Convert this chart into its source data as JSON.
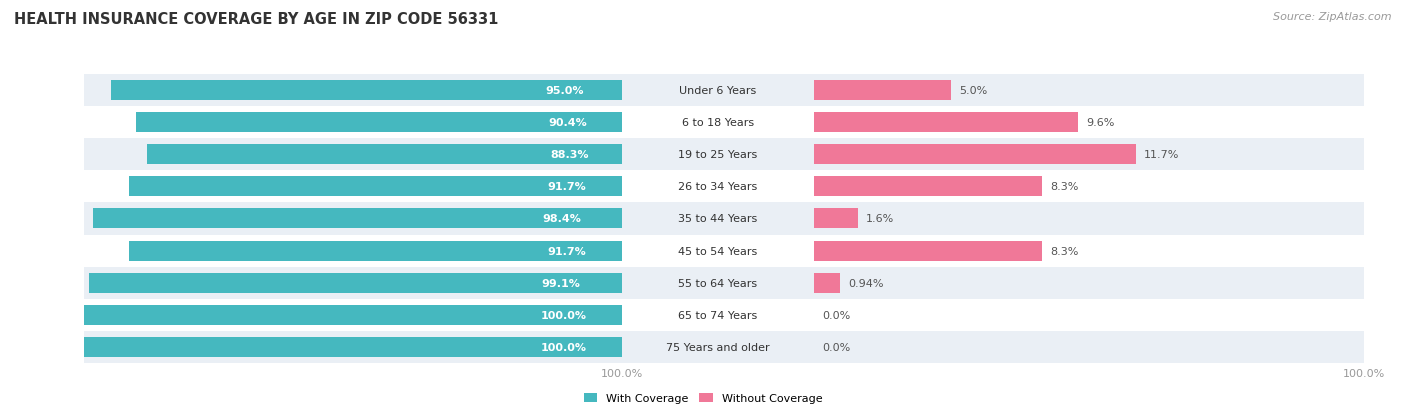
{
  "title": "HEALTH INSURANCE COVERAGE BY AGE IN ZIP CODE 56331",
  "source": "Source: ZipAtlas.com",
  "categories": [
    "Under 6 Years",
    "6 to 18 Years",
    "19 to 25 Years",
    "26 to 34 Years",
    "35 to 44 Years",
    "45 to 54 Years",
    "55 to 64 Years",
    "65 to 74 Years",
    "75 Years and older"
  ],
  "with_coverage": [
    95.0,
    90.4,
    88.3,
    91.7,
    98.4,
    91.7,
    99.1,
    100.0,
    100.0
  ],
  "without_coverage": [
    5.0,
    9.6,
    11.7,
    8.3,
    1.6,
    8.3,
    0.94,
    0.0,
    0.0
  ],
  "with_coverage_labels": [
    "95.0%",
    "90.4%",
    "88.3%",
    "91.7%",
    "98.4%",
    "91.7%",
    "99.1%",
    "100.0%",
    "100.0%"
  ],
  "without_coverage_labels": [
    "5.0%",
    "9.6%",
    "11.7%",
    "8.3%",
    "1.6%",
    "8.3%",
    "0.94%",
    "0.0%",
    "0.0%"
  ],
  "color_with": "#45B8BF",
  "color_without": "#F07898",
  "color_row_bg_light": "#EAEFF5",
  "color_row_bg_white": "#FFFFFF",
  "bar_height": 0.62,
  "figsize": [
    14.06,
    4.14
  ],
  "dpi": 100,
  "left_xlim": [
    0,
    100
  ],
  "right_xlim": [
    0,
    20
  ],
  "legend_label_with": "With Coverage",
  "legend_label_without": "Without Coverage",
  "title_fontsize": 10.5,
  "label_fontsize": 8,
  "tick_fontsize": 8,
  "source_fontsize": 8,
  "bar_label_fontsize": 8,
  "cat_label_fontsize": 8
}
